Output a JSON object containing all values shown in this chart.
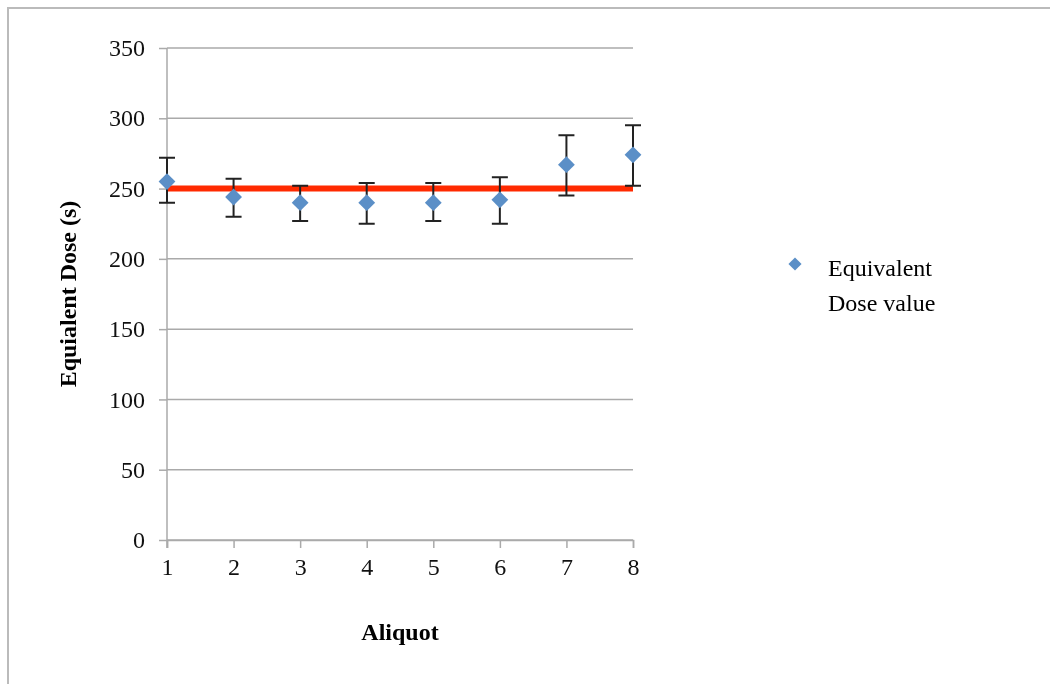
{
  "chart_data": {
    "type": "scatter",
    "xlabel": "Aliquot",
    "ylabel": "Equialent Dose (s)",
    "x": [
      1,
      2,
      3,
      4,
      5,
      6,
      7,
      8
    ],
    "series": [
      {
        "name": "Equivalent Dose value",
        "color": "#5b8fc7",
        "values": [
          255,
          244,
          240,
          240,
          240,
          242,
          267,
          274
        ],
        "errors": [
          [
            240,
            272
          ],
          [
            230,
            257
          ],
          [
            227,
            252
          ],
          [
            225,
            254
          ],
          [
            227,
            254
          ],
          [
            225,
            258
          ],
          [
            245,
            288
          ],
          [
            252,
            295
          ]
        ]
      }
    ],
    "xlim": [
      1,
      8
    ],
    "xticks": [
      1,
      2,
      3,
      4,
      5,
      6,
      7,
      8
    ],
    "ylim": [
      0,
      350
    ],
    "yticks": [
      0,
      50,
      100,
      150,
      200,
      250,
      300,
      350
    ],
    "ref_lines": [
      {
        "axis": "y",
        "value": 250,
        "color": "#ff2a00"
      }
    ],
    "grid": "y",
    "legend": "right",
    "marker": "diamond"
  }
}
